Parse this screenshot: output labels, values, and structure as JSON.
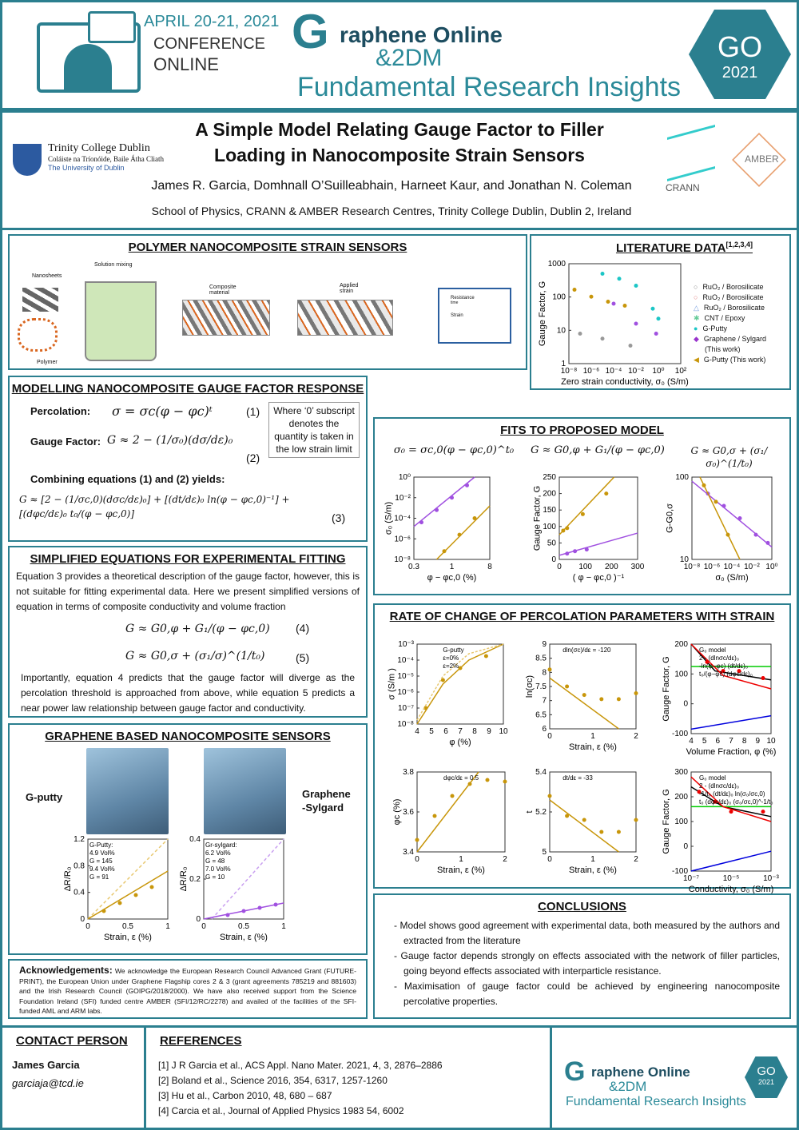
{
  "header": {
    "date": "APRIL 20-21, 2021",
    "conference": "CONFERENCE",
    "online": "ONLINE",
    "brand1": "raphene Online",
    "brand_g": "G",
    "brand2": "&2DM",
    "tagline": "Fundamental Research Insights",
    "badge_go": "GO",
    "badge_year": "2021"
  },
  "title": {
    "line1": "A Simple Model Relating Gauge Factor to Filler",
    "line2": "Loading in Nanocomposite Strain Sensors",
    "authors": "James R. Garcia, Domhnall O’Suilleabhain, Harneet Kaur, and Jonathan N. Coleman",
    "affiliation": "School of Physics, CRANN & AMBER Research Centres, Trinity College Dublin, Dublin 2, Ireland",
    "tcd_name": "Trinity College Dublin",
    "tcd_irish": "Coláiste na Tríonóide, Baile Átha Cliath",
    "tcd_sub": "The University of Dublin",
    "crann": "CRANN",
    "amber": "AMBER"
  },
  "polymer": {
    "title": "POLYMER NANOCOMPOSITE STRAIN SENSORS",
    "nanosheets": "Nanosheets",
    "polymer": "Polymer",
    "mixing": "Solution mixing",
    "composite": "Composite material",
    "applied": "Applied strain",
    "resistance": "Resistance",
    "strain": "Strain",
    "time": "time"
  },
  "literature": {
    "title": "LITERATURE DATA",
    "refs": "[1,2,3,4]",
    "ylabel": "Gauge Factor, G",
    "xlabel": "Zero strain conductivity, σ₀ (S/m)",
    "yticks": [
      "1000",
      "100",
      "10",
      "1"
    ],
    "xticks": [
      "10⁻⁸",
      "10⁻⁶",
      "10⁻⁴",
      "10⁻²",
      "10⁰",
      "10²"
    ],
    "legend": [
      {
        "label": "RuO₂ / Borosilicate",
        "color": "#888888",
        "symbol": "○"
      },
      {
        "label": "RuO₂ / Borosilicate",
        "color": "#e08080",
        "symbol": "○"
      },
      {
        "label": "RuO₂ / Borosilicate",
        "color": "#7aa0e0",
        "symbol": "△"
      },
      {
        "label": "CNT / Epoxy",
        "color": "#66cc99",
        "symbol": "✱"
      },
      {
        "label": "G-Putty",
        "color": "#1cc6c6",
        "symbol": "●"
      },
      {
        "label": "Graphene / Sylgard",
        "label2": "(This work)",
        "color": "#9933cc",
        "symbol": "◆"
      },
      {
        "label": "G-Putty (This work)",
        "color": "#c8960a",
        "symbol": "◀"
      }
    ]
  },
  "modelling": {
    "title": "MODELLING NANOCOMPOSITE GAUGE FACTOR RESPONSE",
    "percolation": "Percolation:",
    "eq1": "σ = σc(φ − φc)ᵗ",
    "n1": "(1)",
    "gauge": "Gauge Factor:",
    "eq2": "G ≈ 2 − (1/σ₀)(dσ/dε)₀",
    "n2": "(2)",
    "note": "Where ‘0’ subscript denotes the quantity is taken in the low strain limit",
    "combining": "Combining equations (1) and (2) yields:",
    "eq3": "G ≈ [2 − (1/σc,0)(dσc/dε)₀] + [(dt/dε)₀ ln(φ − φc,0)⁻¹] + [(dφc/dε)₀ t₀/(φ − φc,0)]",
    "n3": "(3)"
  },
  "simplified": {
    "title": "SIMPLIFIED EQUATIONS FOR EXPERIMENTAL FITTING",
    "p1": "Equation 3 provides a theoretical description of the gauge factor, however, this is not suitable for fitting experimental data. Here we present simplified versions of equation in terms of composite conductivity and volume fraction",
    "eq4": "G ≈ G0,φ + G₁/(φ − φc,0)",
    "n4": "(4)",
    "eq5": "G ≈ G0,σ + (σ₁/σ)^(1/t₀)",
    "n5": "(5)",
    "p2": "Importantly, equation 4 predicts that the gauge factor will diverge as the percolation threshold is approached from above, while equation 5 predicts a near power law relationship between gauge factor and  conductivity."
  },
  "graphene": {
    "title": "GRAPHENE BASED NANOCOMPOSITE SENSORS",
    "gputty": "G-putty",
    "sylgard1": "Graphene",
    "sylgard2": "-Sylgard"
  },
  "ack": {
    "heading": "Acknowledgements:",
    "text": "We acknowledge the European Research Council Advanced Grant (FUTURE-PRINT), the European Union under Graphene Flagship cores 2 & 3 (grant agreements 785219 and 881603) and the Irish Research Council (GOIPG/2018/2000). We have also received support from the Science Foundation Ireland (SFI) funded centre AMBER (SFI/12/RC/2278) and availed of the facilities of the SFI-funded AML and ARM labs."
  },
  "fits": {
    "title": "FITS TO PROPOSED MODEL",
    "eqA": "σ₀ = σc,0(φ − φc,0)^t₀",
    "eqB": "G ≈ G0,φ + G₁/(φ − φc,0)",
    "eqC": "G ≈ G0,σ + (σ₁/σ₀)^(1/t₀)"
  },
  "rate": {
    "title": "RATE OF CHANGE OF PERCOLATION PARAMETERS WITH STRAIN"
  },
  "conclusions": {
    "title": "CONCLUSIONS",
    "items": [
      "Model shows good agreement with experimental data, both measured by the authors and extracted from the literature",
      "Gauge factor depends strongly on effects associated with the network of filler particles, going beyond effects associated with interparticle resistance.",
      "Maximisation of gauge factor could be achieved by engineering nanocomposite percolative properties."
    ]
  },
  "contact": {
    "title": "CONTACT PERSON",
    "name": "James Garcia",
    "email": "garciaja@tcd.ie"
  },
  "references": {
    "title": "REFERENCES",
    "items": [
      "[1] J R Garcia et al., ACS Appl. Nano Mater. 2021, 4, 3, 2876–2886",
      "[2] Boland et al., Science 2016, 354, 6317, 1257-1260",
      "[3] Hu et al., Carbon 2010, 48, 680 – 687",
      "[4] Carcia et al., Journal of Applied Physics 1983 54, 6002"
    ]
  },
  "plots": {
    "lit": {
      "ylabel": "",
      "xlabel": "",
      "xticks": [],
      "yticks": [],
      "legend": []
    },
    "fitA": {
      "ylabel": "σ₀ (S/m)",
      "xlabel": "φ − φc,0 (%)",
      "xticks": [
        "0.3",
        "1",
        "8"
      ],
      "yticks": [
        "10⁰",
        "10⁻²",
        "10⁻⁴",
        "10⁻⁶",
        "10⁻⁸"
      ],
      "legend": []
    },
    "fitB": {
      "ylabel": "Gauge Factor, G",
      "xlabel": "( φ − φc,0 )⁻¹",
      "xticks": [
        "0",
        "100",
        "200",
        "300"
      ],
      "yticks": [
        "250",
        "200",
        "150",
        "100",
        "50",
        "0"
      ],
      "legend": []
    },
    "fitC": {
      "ylabel": "G-G0,σ",
      "xlabel": "σ₀ (S/m)",
      "xticks": [
        "10⁻⁸",
        "10⁻⁶",
        "10⁻⁴",
        "10⁻²",
        "10⁰"
      ],
      "yticks": [
        "100",
        "10"
      ],
      "legend": []
    },
    "r1": {
      "ylabel": "σ (S/m )",
      "xlabel": "φ (%)",
      "xticks": [
        "4",
        "5",
        "6",
        "7",
        "8",
        "9",
        "10"
      ],
      "yticks": [
        "10⁻³",
        "10⁻⁴",
        "10⁻⁵",
        "10⁻⁶",
        "10⁻⁷",
        "10⁻⁸"
      ],
      "legend": [
        "G-putty",
        "ε=0%",
        "ε=2%"
      ]
    },
    "r2": {
      "ylabel": "ln(σc)",
      "xlabel": "Strain, ε (%)",
      "xticks": [
        "0",
        "1",
        "2"
      ],
      "yticks": [
        "9",
        "8.5",
        "8",
        "7.5",
        "7",
        "6.5",
        "6"
      ],
      "legend": [
        "dln(σc)/dε = -120"
      ]
    },
    "r3": {
      "ylabel": "Gauge Factor, G",
      "xlabel": "Volume Fraction, φ (%)",
      "xticks": [
        "4",
        "5",
        "6",
        "7",
        "8",
        "9",
        "10"
      ],
      "yticks": [
        "200",
        "100",
        "0",
        "-100"
      ],
      "legend": [
        "G₀ model",
        "2 - (dlnσc/dε)₀",
        "-ln(φ−φc) (dt/dε)₀",
        "t₀/(φ−φc) (dφc/dε)₀"
      ]
    },
    "r4": {
      "ylabel": "φc (%)",
      "xlabel": "Strain, ε (%)",
      "xticks": [
        "0",
        "1",
        "2"
      ],
      "yticks": [
        "3.8",
        "3.6",
        "3.4"
      ],
      "legend": [
        "dφc/dε = 0.5"
      ]
    },
    "r5": {
      "ylabel": "t",
      "xlabel": "Strain, ε (%)",
      "xticks": [
        "0",
        "1",
        "2"
      ],
      "yticks": [
        "5.4",
        "5.2",
        "5"
      ],
      "legend": [
        "dt/dε = -33"
      ]
    },
    "r6": {
      "ylabel": "Gauge Factor, G",
      "xlabel": "Conductivity, σ₀ (S/m)",
      "xticks": [
        "10⁻⁷",
        "10⁻⁵",
        "10⁻³"
      ],
      "yticks": [
        "300",
        "200",
        "100",
        "0",
        "-100"
      ],
      "legend": [
        "G₀ model",
        "2 - (dlnσc/dε)₀",
        "-1/t₀ (dt/dε)₀ ln(σ₀/σc,0)",
        "t₀ (dφc/dε)₀ (σ₀/σc,0)^-1/t₀"
      ]
    },
    "g1": {
      "ylabel": "ΔR/R₀",
      "xlabel": "Strain, ε (%)",
      "xticks": [
        "0",
        "0.5",
        "1"
      ],
      "yticks": [
        "1.2",
        "0.8",
        "0.4",
        "0"
      ],
      "legend": [
        "G-Putty:",
        "4.9 Vol%",
        "G = 145",
        "9.4 Vol%",
        "G = 91"
      ]
    },
    "g2": {
      "ylabel": "ΔR/R₀",
      "xlabel": "Strain, ε (%)",
      "xticks": [
        "0",
        "0.5",
        "1"
      ],
      "yticks": [
        "0.4",
        "0.2",
        "0"
      ],
      "legend": [
        "Gr-sylgard:",
        "6.2 Vol%",
        "G = 48",
        "7.0 Vol%",
        "G = 10"
      ]
    }
  },
  "colors": {
    "teal": "#2b7f8f",
    "gold": "#c8960a",
    "purple": "#a050e0"
  }
}
